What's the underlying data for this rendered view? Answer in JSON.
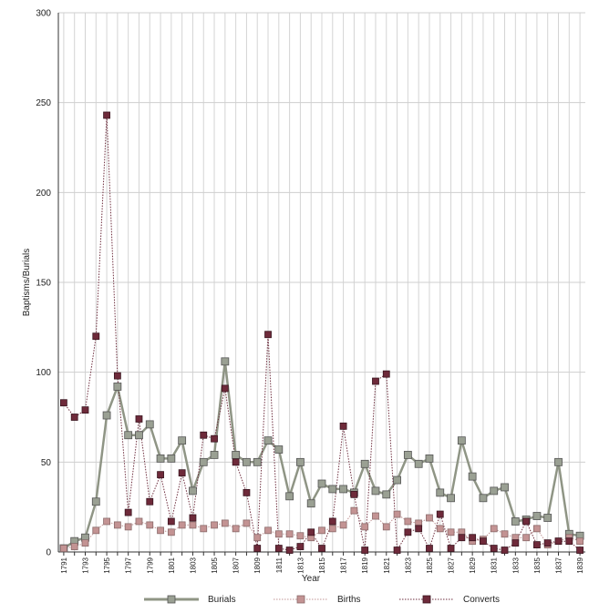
{
  "chart_data": {
    "type": "line",
    "title": "",
    "xlabel": "Year",
    "ylabel": "Baptisms/Burials",
    "ylim": [
      0,
      300
    ],
    "yticks": [
      0,
      50,
      100,
      150,
      200,
      250,
      300
    ],
    "grid": true,
    "legend_position": "bottom",
    "x": [
      1791,
      1792,
      1793,
      1794,
      1795,
      1796,
      1797,
      1798,
      1799,
      1800,
      1801,
      1802,
      1803,
      1804,
      1805,
      1806,
      1807,
      1808,
      1809,
      1810,
      1811,
      1812,
      1813,
      1814,
      1815,
      1816,
      1817,
      1818,
      1819,
      1820,
      1821,
      1822,
      1823,
      1824,
      1825,
      1826,
      1827,
      1828,
      1829,
      1830,
      1831,
      1832,
      1833,
      1834,
      1835,
      1836,
      1837,
      1838,
      1839
    ],
    "xtick_labels": [
      "1791",
      "1793",
      "1795",
      "1797",
      "1799",
      "1801",
      "1803",
      "1805",
      "1807",
      "1809",
      "1811",
      "1813",
      "1815",
      "1817",
      "1819",
      "1821",
      "1823",
      "1825",
      "1827",
      "1829",
      "1831",
      "1833",
      "1835",
      "1837",
      "1839"
    ],
    "series": [
      {
        "name": "Burials",
        "style": "solid",
        "color": "#8f9585",
        "marker_color": "#9aa093",
        "values": [
          2,
          6,
          8,
          28,
          76,
          92,
          65,
          65,
          71,
          52,
          52,
          62,
          34,
          50,
          54,
          106,
          54,
          50,
          50,
          62,
          57,
          31,
          50,
          27,
          38,
          35,
          35,
          33,
          49,
          34,
          32,
          40,
          54,
          49,
          52,
          33,
          30,
          62,
          42,
          30,
          34,
          36,
          17,
          18,
          20,
          19,
          50,
          10,
          9
        ]
      },
      {
        "name": "Births",
        "style": "dotted",
        "color": "#c09494",
        "marker_color": "#c39393",
        "values": [
          2,
          3,
          5,
          12,
          17,
          15,
          14,
          17,
          15,
          12,
          11,
          15,
          15,
          13,
          15,
          16,
          13,
          16,
          8,
          12,
          10,
          10,
          9,
          8,
          12,
          13,
          15,
          23,
          14,
          20,
          14,
          21,
          17,
          16,
          19,
          13,
          11,
          11,
          6,
          7,
          13,
          10,
          8,
          8,
          13,
          4,
          6,
          8,
          6
        ]
      },
      {
        "name": "Converts",
        "style": "dotted",
        "color": "#6e2e3e",
        "marker_color": "#6e2a3a",
        "values": [
          83,
          75,
          79,
          120,
          243,
          98,
          22,
          74,
          28,
          43,
          17,
          44,
          19,
          65,
          63,
          91,
          50,
          33,
          2,
          121,
          2,
          1,
          3,
          11,
          2,
          17,
          70,
          32,
          1,
          95,
          99,
          1,
          11,
          13,
          2,
          21,
          2,
          8,
          8,
          6,
          2,
          1,
          5,
          17,
          4,
          5,
          6,
          6,
          1
        ]
      }
    ]
  }
}
